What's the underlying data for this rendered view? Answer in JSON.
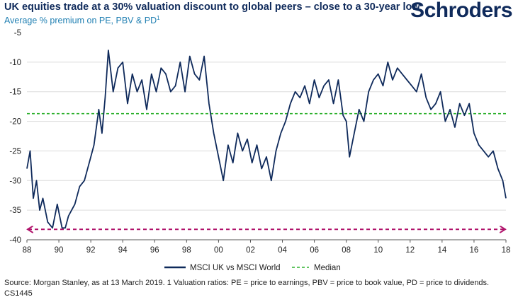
{
  "header": {
    "title": "UK equities trade at a 30% valuation discount to global peers – close to a 30-year low",
    "subtitle": "Average % premium on PE, PBV & PD",
    "subtitle_sup": "1",
    "logo": "Schroders"
  },
  "footer": {
    "source_line1": "Source: Morgan Stanley, as at 13 March 2019. 1  Valuation ratios: PE = price to earnings, PBV = price to book value, PD = price to dividends.",
    "source_line2": "CS1445"
  },
  "colors": {
    "series": "#0f2a5b",
    "median": "#2bb02b",
    "arrow": "#b0136b",
    "grid": "#dcdcdc"
  },
  "chart_data": {
    "type": "line",
    "xlabel": "",
    "ylabel": "",
    "xlim": [
      1988,
      2018
    ],
    "ylim": [
      -40,
      -5
    ],
    "x_tick_labels": [
      "88",
      "90",
      "92",
      "94",
      "96",
      "98",
      "00",
      "02",
      "04",
      "06",
      "08",
      "10",
      "12",
      "14",
      "16",
      "18"
    ],
    "y_tick_labels": [
      "-5",
      "-10",
      "-15",
      "-20",
      "-25",
      "-30",
      "-35",
      "-40"
    ],
    "grid": "horizontal",
    "legend": "bottom-center",
    "series": [
      {
        "name": "MSCI UK vs MSCI World",
        "x": [
          1988.0,
          1988.2,
          1988.4,
          1988.6,
          1988.8,
          1989.0,
          1989.3,
          1989.6,
          1989.9,
          1990.2,
          1990.4,
          1990.6,
          1990.8,
          1991.0,
          1991.3,
          1991.6,
          1991.9,
          1992.2,
          1992.5,
          1992.7,
          1992.9,
          1993.1,
          1993.4,
          1993.7,
          1994.0,
          1994.3,
          1994.6,
          1994.9,
          1995.2,
          1995.5,
          1995.8,
          1996.1,
          1996.4,
          1996.7,
          1997.0,
          1997.3,
          1997.6,
          1997.9,
          1998.2,
          1998.5,
          1998.8,
          1999.1,
          1999.4,
          1999.7,
          2000.0,
          2000.3,
          2000.6,
          2000.9,
          2001.2,
          2001.5,
          2001.8,
          2002.1,
          2002.4,
          2002.7,
          2003.0,
          2003.3,
          2003.6,
          2003.9,
          2004.2,
          2004.5,
          2004.8,
          2005.1,
          2005.4,
          2005.7,
          2006.0,
          2006.3,
          2006.6,
          2006.9,
          2007.2,
          2007.5,
          2007.8,
          2008.0,
          2008.2,
          2008.5,
          2008.8,
          2009.1,
          2009.4,
          2009.7,
          2010.0,
          2010.3,
          2010.6,
          2010.9,
          2011.2,
          2011.5,
          2011.8,
          2012.1,
          2012.4,
          2012.7,
          2013.0,
          2013.3,
          2013.6,
          2013.9,
          2014.2,
          2014.5,
          2014.8,
          2015.1,
          2015.4,
          2015.7,
          2016.0,
          2016.3,
          2016.6,
          2016.9,
          2017.2,
          2017.5,
          2017.8,
          2018.0
        ],
        "values": [
          -28,
          -25,
          -33,
          -30,
          -35,
          -33,
          -37,
          -38,
          -34,
          -38,
          -38,
          -36,
          -35,
          -34,
          -31,
          -30,
          -27,
          -24,
          -18,
          -22,
          -16,
          -8,
          -15,
          -11,
          -10,
          -17,
          -12,
          -15,
          -13,
          -18,
          -12,
          -15,
          -11,
          -12,
          -15,
          -14,
          -10,
          -15,
          -9,
          -12,
          -13,
          -9,
          -17,
          -22,
          -26,
          -30,
          -24,
          -27,
          -22,
          -25,
          -23,
          -27,
          -24,
          -28,
          -26,
          -30,
          -25,
          -22,
          -20,
          -17,
          -15,
          -16,
          -14,
          -17,
          -13,
          -16,
          -14,
          -13,
          -17,
          -13,
          -19,
          -20,
          -26,
          -22,
          -18,
          -20,
          -15,
          -13,
          -12,
          -14,
          -10,
          -13,
          -11,
          -12,
          -13,
          -14,
          -15,
          -12,
          -16,
          -18,
          -17,
          -15,
          -20,
          -18,
          -21,
          -17,
          -19,
          -17,
          -22,
          -24,
          -25,
          -26,
          -25,
          -28,
          -30,
          -33
        ]
      },
      {
        "name": "Median",
        "type": "reference",
        "value": -18.7
      }
    ]
  }
}
